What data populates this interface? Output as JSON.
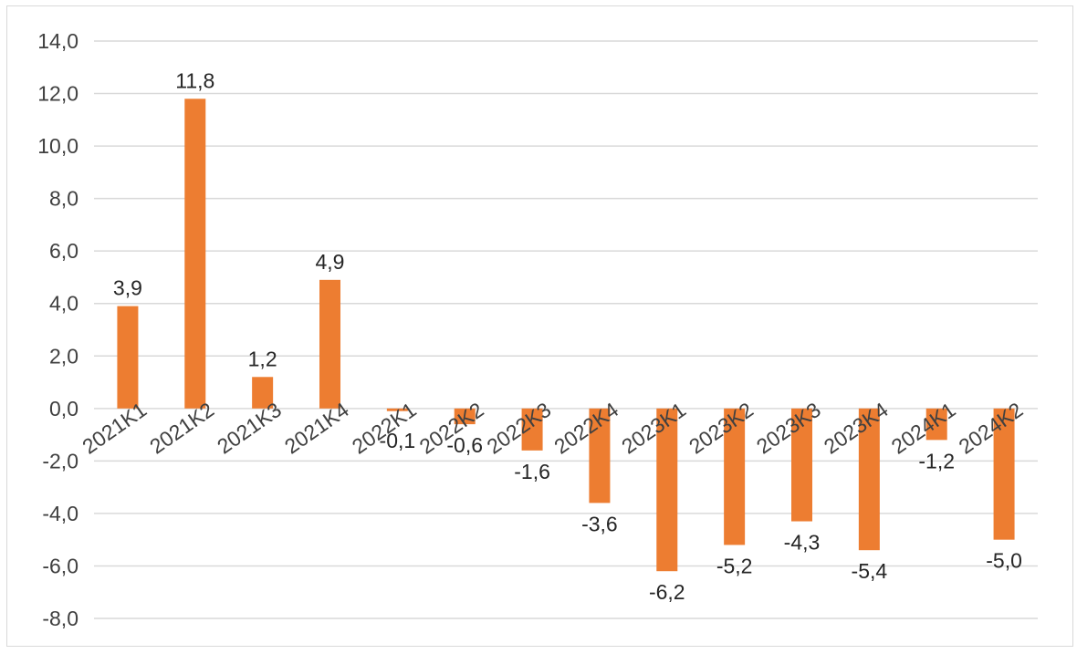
{
  "chart_data": {
    "type": "bar",
    "categories": [
      "2021K1",
      "2021K2",
      "2021K3",
      "2021K4",
      "2022K1",
      "2022K2",
      "2022K3",
      "2022K4",
      "2023K1",
      "2023K2",
      "2023K3",
      "2023K4",
      "2024K1",
      "2024K2"
    ],
    "values": [
      3.9,
      11.8,
      1.2,
      4.9,
      -0.1,
      -0.6,
      -1.6,
      -3.6,
      -6.2,
      -5.2,
      -4.3,
      -5.4,
      -1.2,
      -5.0
    ],
    "data_labels": [
      "3,9",
      "11,8",
      "1,2",
      "4,9",
      "-0,1",
      "-0,6",
      "-1,6",
      "-3,6",
      "-6,2",
      "-5,2",
      "-4,3",
      "-5,4",
      "-1,2",
      "-5,0"
    ],
    "ylim": [
      -8,
      14
    ],
    "yticks": [
      14,
      12,
      10,
      8,
      6,
      4,
      2,
      0,
      -2,
      -4,
      -6,
      -8
    ],
    "ytick_labels": [
      "14,0",
      "12,0",
      "10,0",
      "8,0",
      "6,0",
      "4,0",
      "2,0",
      "0,0",
      "-2,0",
      "-4,0",
      "-6,0",
      "-8,0"
    ],
    "grid": true,
    "legend": "none",
    "bar_color": "#ed7d31",
    "title": "",
    "xlabel": "",
    "ylabel": ""
  }
}
